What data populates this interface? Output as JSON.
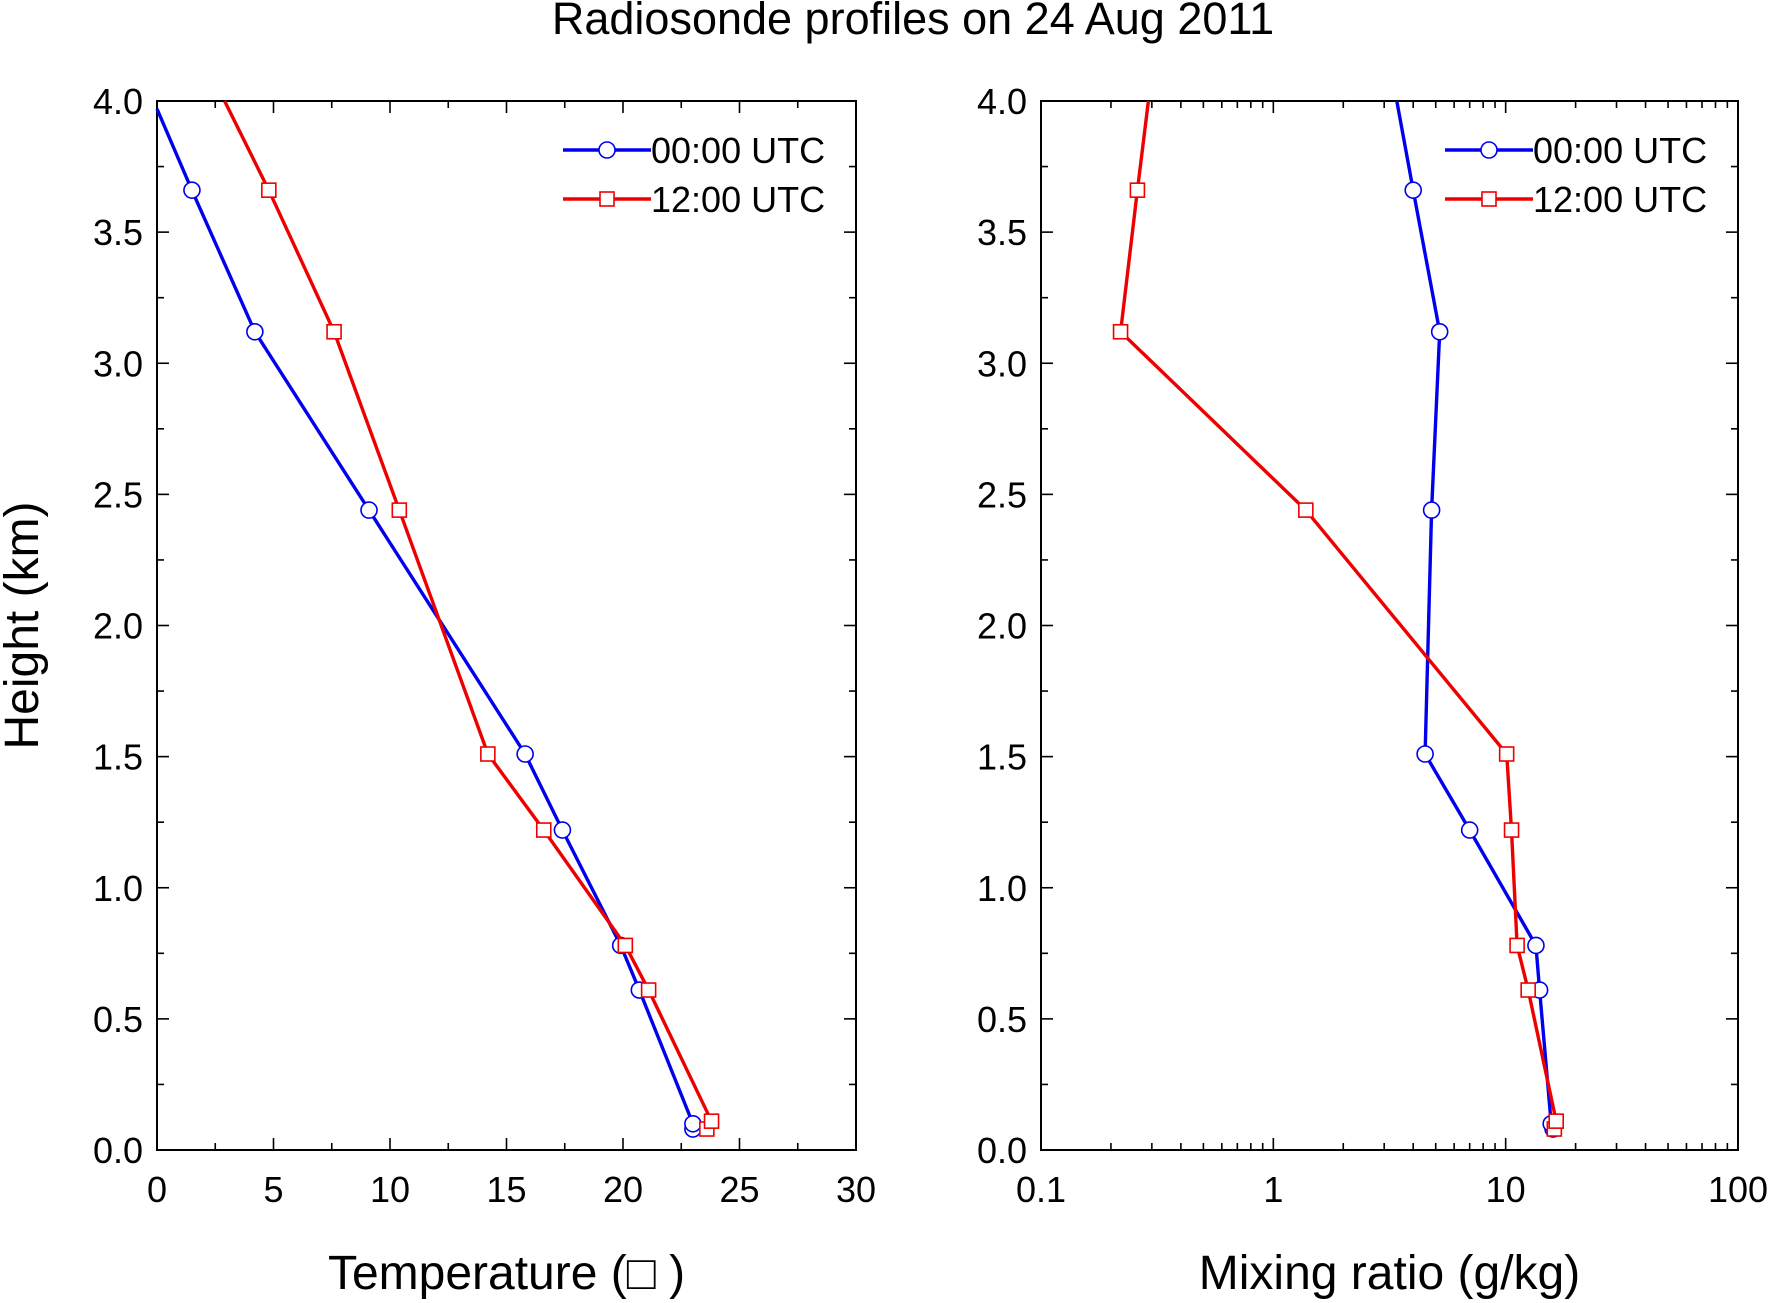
{
  "figure_title": "Radiosonde profiles on 24 Aug 2011",
  "colors": {
    "series_0000": "#0000ee",
    "series_1200": "#ee0000",
    "axis": "#000000"
  },
  "chart_data": [
    {
      "type": "line",
      "id": "temperature",
      "xlabel": "Temperature (□ )",
      "ylabel": "Height (km)",
      "xscale": "linear",
      "xlim": [
        0,
        30
      ],
      "ylim": [
        0,
        4
      ],
      "xticks": [
        0,
        5,
        10,
        15,
        20,
        25,
        30
      ],
      "xtick_labels": [
        "0",
        "5",
        "10",
        "15",
        "20",
        "25",
        "30"
      ],
      "yticks": [
        0,
        0.5,
        1,
        1.5,
        2,
        2.5,
        3,
        3.5,
        4
      ],
      "ytick_labels": [
        "0.0",
        "0.5",
        "1.0",
        "1.5",
        "2.0",
        "2.5",
        "3.0",
        "3.5",
        "4.0"
      ],
      "legend_position": "top-right",
      "series": [
        {
          "name": "00:00 UTC",
          "marker": "circle",
          "color": "#0000ee",
          "x": [
            23.0,
            23.0,
            20.7,
            19.9,
            17.4,
            15.8,
            9.1,
            4.2,
            1.5
          ],
          "y": [
            0.08,
            0.1,
            0.61,
            0.78,
            1.22,
            1.51,
            2.44,
            3.12,
            3.66
          ],
          "line_x": [
            23.0,
            20.7,
            19.9,
            17.4,
            15.8,
            9.1,
            4.2,
            1.5,
            0.0
          ],
          "line_y": [
            0.1,
            0.61,
            0.78,
            1.22,
            1.51,
            2.44,
            3.12,
            3.66,
            3.97
          ]
        },
        {
          "name": "12:00 UTC",
          "marker": "square",
          "color": "#ee0000",
          "x": [
            23.6,
            23.8,
            21.1,
            20.1,
            16.6,
            14.2,
            10.4,
            7.6,
            4.8
          ],
          "y": [
            0.08,
            0.11,
            0.61,
            0.78,
            1.22,
            1.51,
            2.44,
            3.12,
            3.66
          ],
          "line_x": [
            23.8,
            21.1,
            20.1,
            16.6,
            14.2,
            10.4,
            7.6,
            4.8,
            2.9
          ],
          "line_y": [
            0.11,
            0.61,
            0.78,
            1.22,
            1.51,
            2.44,
            3.12,
            3.66,
            4.0
          ]
        }
      ]
    },
    {
      "type": "line",
      "id": "mixing",
      "xlabel": "Mixing ratio (g/kg)",
      "ylabel": "",
      "xscale": "log",
      "xlim": [
        0.1,
        100
      ],
      "ylim": [
        0,
        4
      ],
      "xticks": [
        0.1,
        1,
        10,
        100
      ],
      "xtick_labels": [
        "0.1",
        "1",
        "10",
        "100"
      ],
      "yticks": [
        0,
        0.5,
        1,
        1.5,
        2,
        2.5,
        3,
        3.5,
        4
      ],
      "ytick_labels": [
        "0.0",
        "0.5",
        "1.0",
        "1.5",
        "2.0",
        "2.5",
        "3.0",
        "3.5",
        "4.0"
      ],
      "legend_position": "top-right",
      "series": [
        {
          "name": "00:00 UTC",
          "marker": "circle",
          "color": "#0000ee",
          "x": [
            16.0,
            15.7,
            14.0,
            13.5,
            7.0,
            4.5,
            4.8,
            5.2,
            4.0
          ],
          "y": [
            0.08,
            0.1,
            0.61,
            0.78,
            1.22,
            1.51,
            2.44,
            3.12,
            3.66
          ],
          "line_x": [
            15.7,
            14.0,
            13.5,
            7.0,
            4.5,
            4.8,
            5.2,
            4.0,
            3.4
          ],
          "line_y": [
            0.1,
            0.61,
            0.78,
            1.22,
            1.51,
            2.44,
            3.12,
            3.66,
            4.0
          ]
        },
        {
          "name": "12:00 UTC",
          "marker": "square",
          "color": "#ee0000",
          "x": [
            16.2,
            16.5,
            12.5,
            11.2,
            10.6,
            10.1,
            1.38,
            0.22,
            0.26
          ],
          "y": [
            0.08,
            0.11,
            0.61,
            0.78,
            1.22,
            1.51,
            2.44,
            3.12,
            3.66
          ],
          "line_x": [
            16.5,
            12.5,
            11.2,
            10.6,
            10.1,
            1.38,
            0.22,
            0.26,
            0.29
          ],
          "line_y": [
            0.11,
            0.61,
            0.78,
            1.22,
            1.51,
            2.44,
            3.12,
            3.66,
            4.0
          ]
        }
      ]
    }
  ]
}
